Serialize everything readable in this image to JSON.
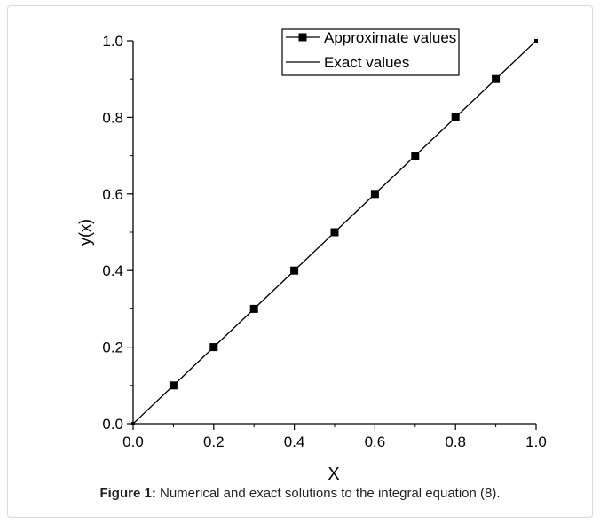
{
  "chart_data": {
    "type": "line",
    "title": "",
    "xlabel": "X",
    "ylabel": "y(x)",
    "xlim": [
      0.0,
      1.0
    ],
    "ylim": [
      0.0,
      1.0
    ],
    "x_ticks": [
      "0.0",
      "0.2",
      "0.4",
      "0.6",
      "0.8",
      "1.0"
    ],
    "y_ticks": [
      "0.0",
      "0.2",
      "0.4",
      "0.6",
      "0.8",
      "1.0"
    ],
    "grid": false,
    "legend_position": "top-right",
    "series": [
      {
        "name": "Approximate values",
        "style": "line-with-square-markers",
        "color": "#000000",
        "x": [
          0.0,
          0.1,
          0.2,
          0.3,
          0.4,
          0.5,
          0.6,
          0.7,
          0.8,
          0.9,
          1.0
        ],
        "y": [
          0.0,
          0.1,
          0.2,
          0.3,
          0.4,
          0.5,
          0.6,
          0.7,
          0.8,
          0.9,
          1.0
        ]
      },
      {
        "name": "Exact values",
        "style": "line",
        "color": "#000000",
        "x": [
          0.0,
          0.1,
          0.2,
          0.3,
          0.4,
          0.5,
          0.6,
          0.7,
          0.8,
          0.9,
          1.0
        ],
        "y": [
          0.0,
          0.1,
          0.2,
          0.3,
          0.4,
          0.5,
          0.6,
          0.7,
          0.8,
          0.9,
          1.0
        ]
      }
    ]
  },
  "caption": {
    "label": "Figure 1:",
    "text": " Numerical and exact solutions to the integral equation (8)."
  }
}
